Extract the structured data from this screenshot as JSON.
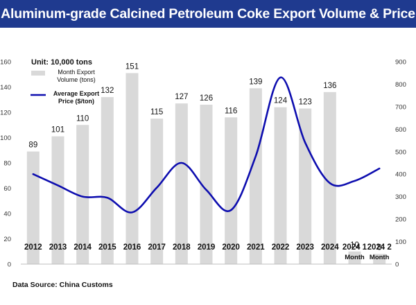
{
  "title": "Aluminum-grade Calcined Petroleum Coke Export Volume & Price",
  "unit_label": "Unit: 10,000 tons",
  "source": "Data Source: China Customs",
  "colors": {
    "title_bg": "#1f3a8f",
    "title_text": "#ffffff",
    "bar": "#d9d9d9",
    "line": "#0d0daf"
  },
  "chart_data": {
    "type": "bar",
    "categories": [
      "2012",
      "2013",
      "2014",
      "2015",
      "2016",
      "2017",
      "2018",
      "2019",
      "2020",
      "2021",
      "2022",
      "2023",
      "2024",
      "2024 1 Month",
      "2024 2 Month"
    ],
    "category_lines": [
      [
        "2012"
      ],
      [
        "2013"
      ],
      [
        "2014"
      ],
      [
        "2015"
      ],
      [
        "2016"
      ],
      [
        "2017"
      ],
      [
        "2018"
      ],
      [
        "2019"
      ],
      [
        "2020"
      ],
      [
        "2021"
      ],
      [
        "2022"
      ],
      [
        "2023"
      ],
      [
        "2024"
      ],
      [
        "2024 1",
        "Month"
      ],
      [
        "2024 2",
        "Month"
      ]
    ],
    "series": [
      {
        "name": "Month Export Volume (tons)",
        "type": "bar",
        "axis": "left",
        "values": [
          89,
          101,
          110,
          132,
          151,
          115,
          127,
          126,
          116,
          139,
          124,
          123,
          136,
          10,
          8
        ],
        "data_labels": [
          "89",
          "101",
          "110",
          "132",
          "151",
          "115",
          "127",
          "126",
          "116",
          "139",
          "124",
          "123",
          "136",
          "10",
          "8"
        ]
      },
      {
        "name": "Average Export Price ($/ton)",
        "type": "line",
        "axis": "right",
        "smooth": true,
        "values": [
          400,
          350,
          300,
          295,
          230,
          340,
          450,
          330,
          240,
          480,
          830,
          540,
          360,
          370,
          425
        ]
      }
    ],
    "legend": [
      {
        "lines": [
          "Month Export",
          "Volume (tons)"
        ],
        "kind": "bar"
      },
      {
        "lines": [
          "Average Export",
          "Price ($/ton)"
        ],
        "kind": "line"
      }
    ],
    "y_left": {
      "min": 0,
      "max": 160,
      "ticks": [
        "0",
        "20",
        "40",
        "60",
        "80",
        "100",
        "120",
        "140",
        "160"
      ]
    },
    "y_right": {
      "min": 0,
      "max": 900,
      "ticks": [
        "0",
        "100",
        "200",
        "300",
        "400",
        "500",
        "600",
        "700",
        "800",
        "900"
      ]
    },
    "legend_position": "top-left",
    "grid": false
  }
}
